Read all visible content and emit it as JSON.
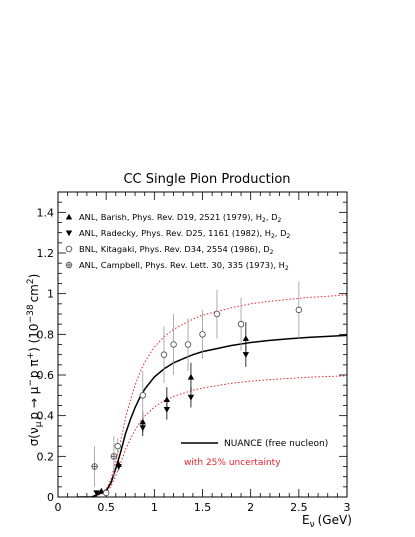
{
  "chart_data": {
    "type": "scatter",
    "title": "CC Single Pion Production",
    "xlabel": "E",
    "xlabel_sub": "ν",
    "xlabel_unit": "(GeV)",
    "ylabel": "σ(ν",
    "ylabel_sub": "μ",
    "ylabel_rest": "p → μ",
    "ylabel_sup": "−",
    "ylabel_rest2": "p π",
    "ylabel_sup2": "+",
    "ylabel_rest3": ") (10",
    "ylabel_sup3": "−38",
    "ylabel_rest4": "cm",
    "ylabel_sup4": "2",
    "ylabel_rest5": ")",
    "xlim": [
      0,
      3
    ],
    "ylim": [
      0,
      1.5
    ],
    "xticks": [
      "0",
      "0.5",
      "1",
      "1.5",
      "2",
      "2.5",
      "3"
    ],
    "yticks": [
      "0",
      "0.2",
      "0.4",
      "0.6",
      "0.8",
      "1",
      "1.2",
      "1.4"
    ],
    "legend": [
      {
        "marker": "triangle-up",
        "text": "ANL, Barish, Phys. Rev. D19, 2521 (1979), H",
        "sub": "2",
        "text2": ", D",
        "sub2": "2"
      },
      {
        "marker": "triangle-down",
        "text": "ANL, Radecky, Phys. Rev. D25, 1161 (1982), H",
        "sub": "2",
        "text2": ", D",
        "sub2": "2"
      },
      {
        "marker": "circle-open",
        "text": "BNL, Kitagaki, Phys. Rev. D34, 2554 (1986), D",
        "sub": "2",
        "text2": "",
        "sub2": ""
      },
      {
        "marker": "cross",
        "text": "ANL, Campbell, Phys. Rev. Lett. 30, 335 (1973), H",
        "sub": "2",
        "text2": "",
        "sub2": ""
      }
    ],
    "curve_legend": [
      {
        "text": "NUANCE (free nucleon)",
        "color": "#000000",
        "style": "solid"
      },
      {
        "text": "with 25% uncertainty",
        "color": "#e8222a",
        "style": "dotted"
      }
    ],
    "curves": {
      "x": [
        0.2,
        0.3,
        0.35,
        0.4,
        0.45,
        0.5,
        0.55,
        0.6,
        0.65,
        0.7,
        0.75,
        0.8,
        0.85,
        0.9,
        0.95,
        1.0,
        1.1,
        1.2,
        1.3,
        1.4,
        1.5,
        1.6,
        1.8,
        2.0,
        2.2,
        2.4,
        2.6,
        2.8,
        3.0
      ],
      "nuance": [
        0,
        0,
        0,
        0.01,
        0.02,
        0.03,
        0.07,
        0.14,
        0.22,
        0.31,
        0.38,
        0.44,
        0.49,
        0.53,
        0.56,
        0.59,
        0.63,
        0.66,
        0.68,
        0.7,
        0.715,
        0.725,
        0.745,
        0.76,
        0.77,
        0.778,
        0.785,
        0.79,
        0.795
      ],
      "upper": [
        0,
        0,
        0,
        0.0125,
        0.025,
        0.0375,
        0.0875,
        0.175,
        0.275,
        0.3875,
        0.475,
        0.55,
        0.6125,
        0.6625,
        0.7,
        0.7375,
        0.7875,
        0.825,
        0.85,
        0.875,
        0.894,
        0.906,
        0.931,
        0.95,
        0.9625,
        0.9725,
        0.981,
        0.9875,
        0.994
      ],
      "lower": [
        0,
        0,
        0,
        0.0075,
        0.015,
        0.0225,
        0.0525,
        0.105,
        0.165,
        0.2325,
        0.285,
        0.33,
        0.3675,
        0.3975,
        0.42,
        0.4425,
        0.4725,
        0.495,
        0.51,
        0.525,
        0.536,
        0.544,
        0.559,
        0.57,
        0.5775,
        0.5835,
        0.589,
        0.5925,
        0.596
      ]
    },
    "series": [
      {
        "marker": "triangle-up",
        "points": [
          {
            "x": 0.45,
            "y": 0.03,
            "err": 0.01
          },
          {
            "x": 0.63,
            "y": 0.16,
            "err": 0.02
          },
          {
            "x": 0.88,
            "y": 0.37,
            "err": 0.05
          },
          {
            "x": 1.13,
            "y": 0.48,
            "err": 0.06
          },
          {
            "x": 1.38,
            "y": 0.59,
            "err": 0.07
          },
          {
            "x": 1.95,
            "y": 0.78,
            "err": 0.08
          }
        ]
      },
      {
        "marker": "triangle-down",
        "points": [
          {
            "x": 0.4,
            "y": 0.02,
            "err": 0.01
          },
          {
            "x": 0.63,
            "y": 0.15,
            "err": 0.02
          },
          {
            "x": 0.88,
            "y": 0.34,
            "err": 0.04
          },
          {
            "x": 1.13,
            "y": 0.43,
            "err": 0.05
          },
          {
            "x": 1.38,
            "y": 0.49,
            "err": 0.05
          },
          {
            "x": 1.95,
            "y": 0.7,
            "err": 0.06
          }
        ]
      },
      {
        "marker": "circle-open",
        "points": [
          {
            "x": 0.5,
            "y": 0.02,
            "err": 0.01
          },
          {
            "x": 0.62,
            "y": 0.25,
            "err": 0.04
          },
          {
            "x": 0.88,
            "y": 0.5,
            "err": 0.12
          },
          {
            "x": 1.1,
            "y": 0.7,
            "err": 0.14
          },
          {
            "x": 1.2,
            "y": 0.75,
            "err": 0.15
          },
          {
            "x": 1.35,
            "y": 0.75,
            "err": 0.13
          },
          {
            "x": 1.5,
            "y": 0.8,
            "err": 0.12
          },
          {
            "x": 1.65,
            "y": 0.9,
            "err": 0.12
          },
          {
            "x": 1.9,
            "y": 0.85,
            "err": 0.13
          },
          {
            "x": 2.5,
            "y": 0.92,
            "err": 0.14
          }
        ]
      },
      {
        "marker": "cross",
        "points": [
          {
            "x": 0.38,
            "y": 0.15,
            "err": 0.1
          },
          {
            "x": 0.58,
            "y": 0.2,
            "err": 0.1
          }
        ]
      }
    ],
    "grid": false,
    "legend_position": "top-left"
  }
}
